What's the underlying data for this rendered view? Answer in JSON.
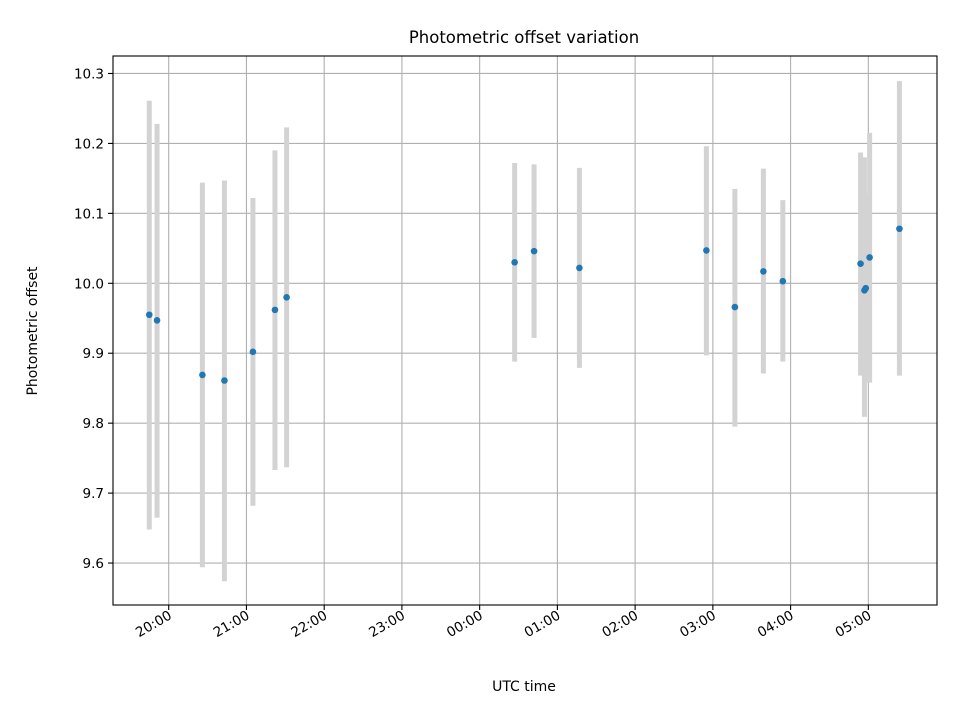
{
  "chart_data": {
    "type": "scatter",
    "title": "Photometric offset variation",
    "xlabel": "UTC time",
    "ylabel": "Photometric offset",
    "x_unit": "UTC time (HH:MM)",
    "xlim": [
      "19:17",
      "05:53"
    ],
    "ylim": [
      9.54,
      10.325
    ],
    "grid": true,
    "colors": {
      "point": "#1f77b4",
      "errorbar": "#d3d3d3",
      "grid": "#b0b0b0"
    },
    "x_ticks": [
      "20:00",
      "21:00",
      "22:00",
      "23:00",
      "00:00",
      "01:00",
      "02:00",
      "03:00",
      "04:00",
      "05:00"
    ],
    "y_ticks": [
      "9.6",
      "9.7",
      "9.8",
      "9.9",
      "10.0",
      "10.1",
      "10.2",
      "10.3"
    ],
    "points": [
      {
        "x": "19:45",
        "y": 9.955,
        "ylow": 9.648,
        "yhigh": 10.261
      },
      {
        "x": "19:51",
        "y": 9.947,
        "ylow": 9.665,
        "yhigh": 10.228
      },
      {
        "x": "20:26",
        "y": 9.869,
        "ylow": 9.594,
        "yhigh": 10.144
      },
      {
        "x": "20:43",
        "y": 9.861,
        "ylow": 9.574,
        "yhigh": 10.147
      },
      {
        "x": "21:05",
        "y": 9.902,
        "ylow": 9.682,
        "yhigh": 10.122
      },
      {
        "x": "21:22",
        "y": 9.962,
        "ylow": 9.733,
        "yhigh": 10.19
      },
      {
        "x": "21:31",
        "y": 9.98,
        "ylow": 9.737,
        "yhigh": 10.223
      },
      {
        "x": "00:27",
        "y": 10.03,
        "ylow": 9.888,
        "yhigh": 10.172
      },
      {
        "x": "00:42",
        "y": 10.046,
        "ylow": 9.922,
        "yhigh": 10.17
      },
      {
        "x": "01:17",
        "y": 10.022,
        "ylow": 9.879,
        "yhigh": 10.165
      },
      {
        "x": "02:55",
        "y": 10.047,
        "ylow": 9.897,
        "yhigh": 10.196
      },
      {
        "x": "03:17",
        "y": 9.966,
        "ylow": 9.795,
        "yhigh": 10.135
      },
      {
        "x": "03:39",
        "y": 10.017,
        "ylow": 9.871,
        "yhigh": 10.164
      },
      {
        "x": "03:54",
        "y": 10.003,
        "ylow": 9.888,
        "yhigh": 10.119
      },
      {
        "x": "04:54",
        "y": 10.028,
        "ylow": 9.868,
        "yhigh": 10.187
      },
      {
        "x": "04:57",
        "y": 9.99,
        "ylow": 9.809,
        "yhigh": 10.18
      },
      {
        "x": "04:58",
        "y": 9.993,
        "ylow": 9.858,
        "yhigh": 10.128
      },
      {
        "x": "05:01",
        "y": 10.037,
        "ylow": 9.858,
        "yhigh": 10.215
      },
      {
        "x": "05:24",
        "y": 10.078,
        "ylow": 9.868,
        "yhigh": 10.289
      }
    ]
  }
}
